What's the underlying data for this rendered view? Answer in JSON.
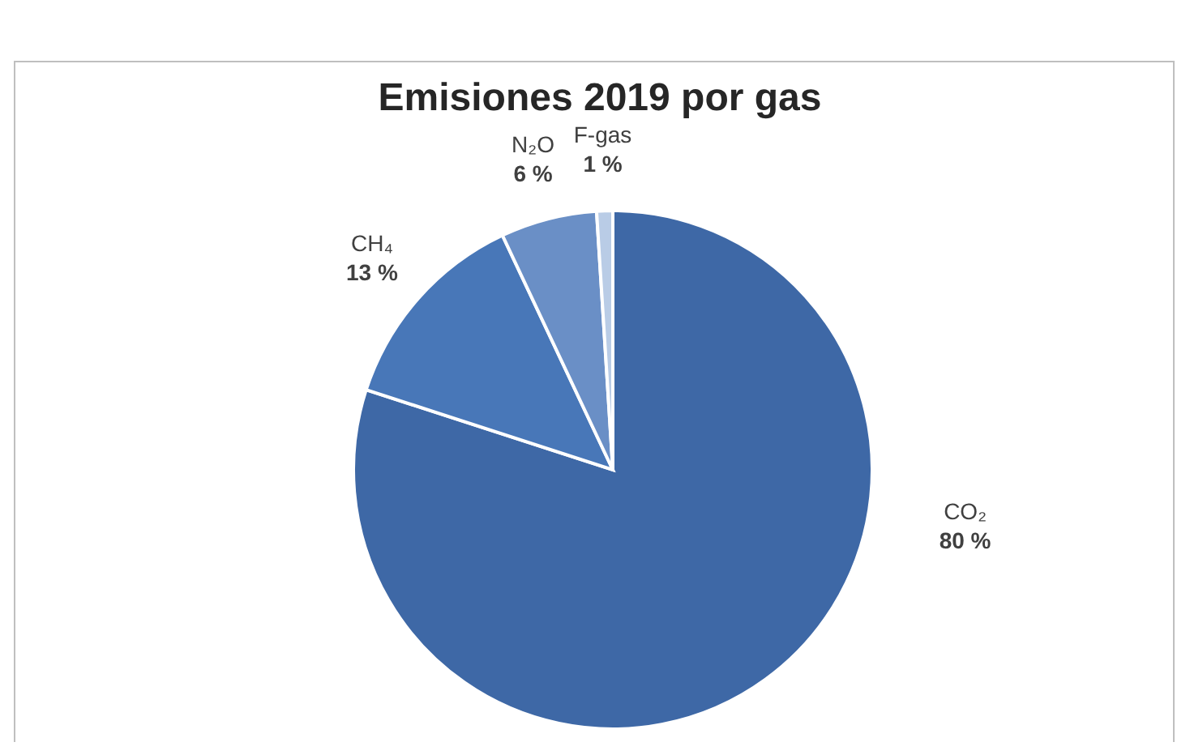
{
  "chart_data": {
    "type": "pie",
    "title": "Emisiones 2019 por gas",
    "categories": [
      "CO₂",
      "CH₄",
      "N₂O",
      "F-gas"
    ],
    "values": [
      80,
      13,
      6,
      1
    ],
    "value_labels": [
      "80 %",
      "13 %",
      "6 %",
      "1 %"
    ],
    "colors": [
      "#3e68a6",
      "#4877b8",
      "#6a8fc6",
      "#b9cce6"
    ]
  }
}
